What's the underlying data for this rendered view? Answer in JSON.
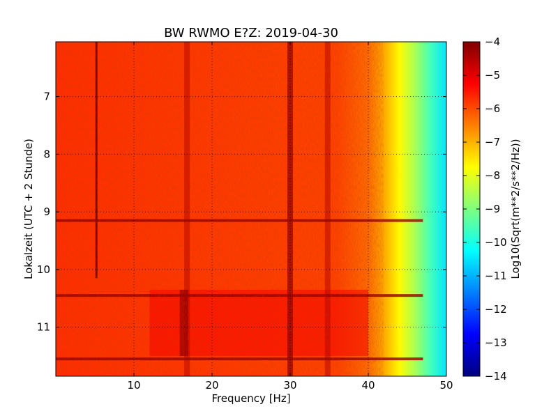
{
  "chart_data": {
    "type": "heatmap",
    "title": "BW RWMO E?Z: 2019-04-30",
    "xlabel": "Frequency [Hz]",
    "ylabel": "Lokalzeit (UTC + 2 Stunde)",
    "x_ticks": [
      10,
      20,
      30,
      40,
      50
    ],
    "y_ticks": [
      7,
      8,
      9,
      10,
      11
    ],
    "xlim": [
      0,
      50
    ],
    "ylim": [
      6.05,
      11.85
    ],
    "y_inverted": true,
    "grid": true,
    "colorscale": "jet",
    "colorbar": {
      "label": "Log10(Sqrt(m**2/s**2/Hz))",
      "range": [
        -14,
        -4
      ],
      "ticks": [
        -4,
        -5,
        -6,
        -7,
        -8,
        -9,
        -10,
        -11,
        -12,
        -13,
        -14
      ]
    },
    "spectral_features": {
      "background_level_low_freq": -5.7,
      "rolloff_start_hz": 40,
      "level_at_50hz": -10.5,
      "persistent_lines_hz": [
        16.8,
        30.0,
        34.8
      ],
      "dark_vertical_line_hz": 5.2,
      "horizontal_bands_hour": [
        9.15,
        10.45,
        11.55
      ],
      "broadband_noise_interval_hour": [
        10.35,
        11.5
      ]
    }
  },
  "colors": {
    "jet": [
      "#00007f",
      "#0000ff",
      "#007fff",
      "#00ffff",
      "#7fff7f",
      "#ffff00",
      "#ff7f00",
      "#ff0000",
      "#7f0000"
    ]
  }
}
